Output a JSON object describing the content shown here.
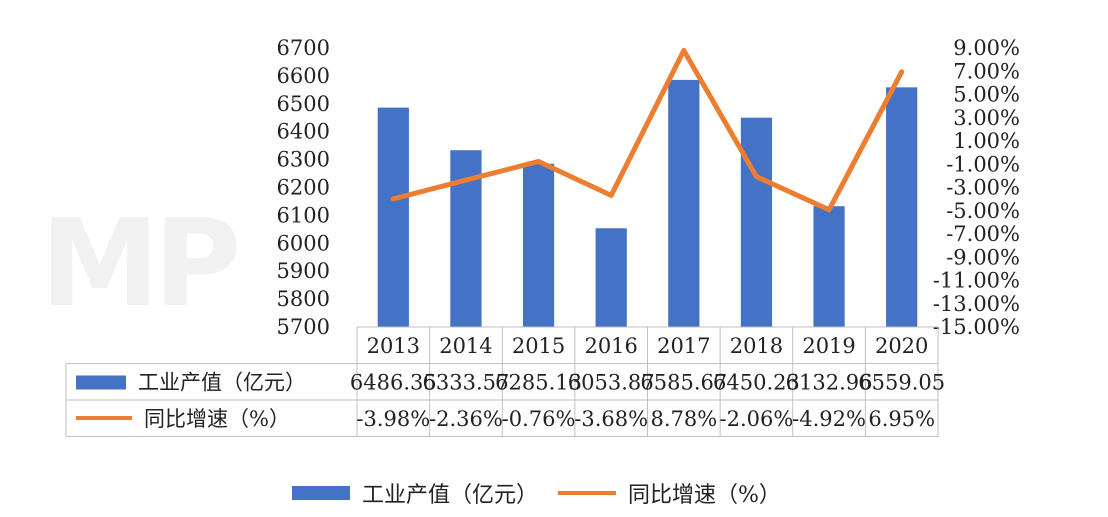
{
  "colors": {
    "bar": "#4472C4",
    "line": "#ED7D31",
    "grid": "#BFBFBF"
  },
  "chart_data": {
    "type": "bar",
    "categories": [
      "2013",
      "2014",
      "2015",
      "2016",
      "2017",
      "2018",
      "2019",
      "2020"
    ],
    "series": [
      {
        "name": "工业产值（亿元）",
        "type": "bar",
        "axis": "left",
        "values": [
          6486.35,
          6333.57,
          6285.13,
          6053.87,
          6585.67,
          6450.23,
          6132.96,
          6559.05
        ],
        "display": [
          "6486.35",
          "6333.57",
          "6285.13",
          "6053.87",
          "6585.67",
          "6450.23",
          "6132.96",
          "6559.05"
        ]
      },
      {
        "name": "同比增速（%）",
        "type": "line",
        "axis": "right",
        "values": [
          -3.98,
          -2.36,
          -0.76,
          -3.68,
          8.78,
          -2.06,
          -4.92,
          6.95
        ],
        "display": [
          "-3.98%",
          "-2.36%",
          "-0.76%",
          "-3.68%",
          "8.78%",
          "-2.06%",
          "-4.92%",
          "6.95%"
        ]
      }
    ],
    "y_left": {
      "ylim": [
        5700,
        6700
      ],
      "ticks": [
        "6700",
        "6600",
        "6500",
        "6400",
        "6300",
        "6200",
        "6100",
        "6000",
        "5900",
        "5800",
        "5700"
      ]
    },
    "y_right": {
      "ylim": [
        -15,
        9
      ],
      "ticks": [
        "9.00%",
        "7.00%",
        "5.00%",
        "3.00%",
        "1.00%",
        "-1.00%",
        "-3.00%",
        "-5.00%",
        "-7.00%",
        "-9.00%",
        "-11.00%",
        "-13.00%",
        "-15.00%"
      ]
    },
    "data_table": true,
    "legend_position": "bottom"
  },
  "watermark": "MP"
}
